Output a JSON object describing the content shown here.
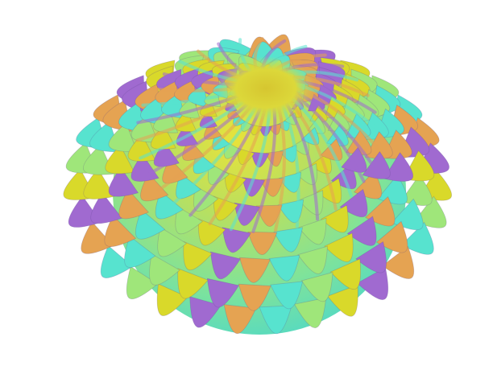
{
  "scene": {
    "background": "#ffffff",
    "object": "spiky-spherical-surface",
    "colors": {
      "tip_yellow": "#d9d92a",
      "body_green": "#9fe67a",
      "ridge_cyan": "#57e3cf",
      "shadow_violet": "#a06ad0",
      "crease_orange": "#e5a352"
    }
  }
}
